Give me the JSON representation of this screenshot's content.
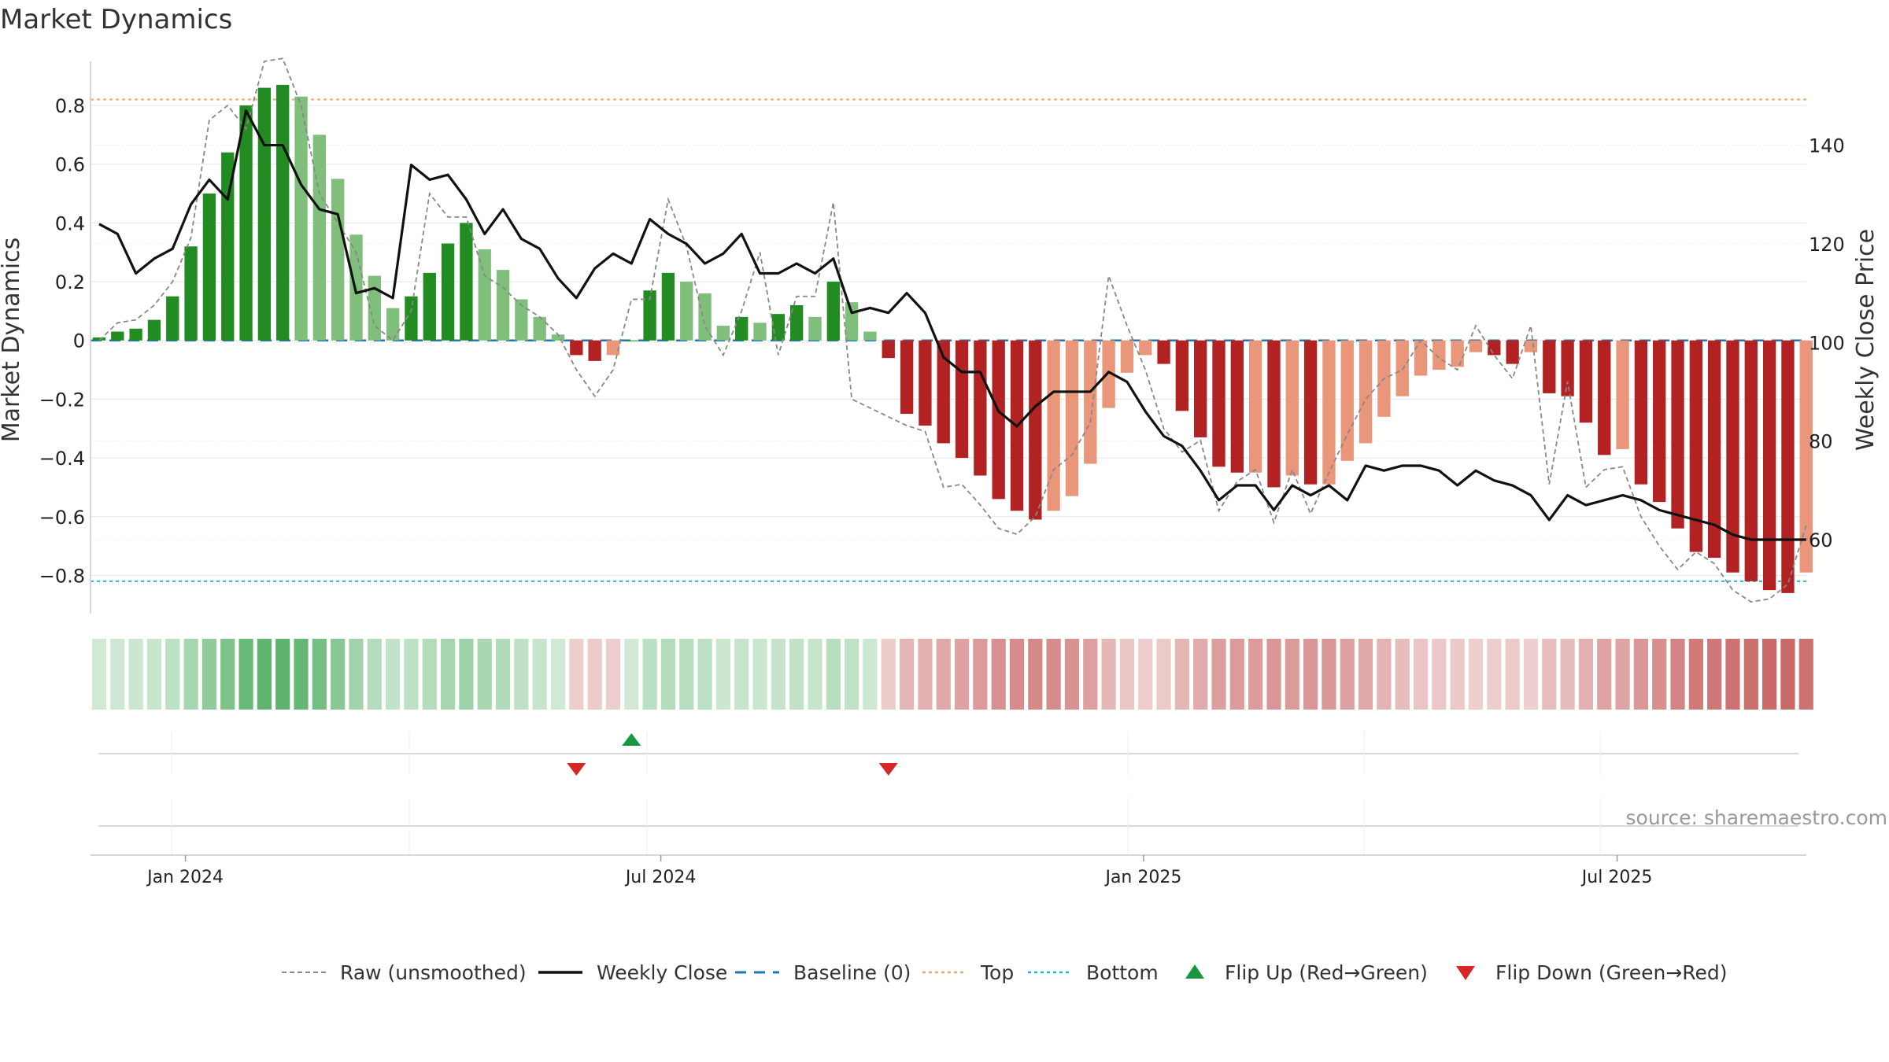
{
  "chart_data": {
    "type": "bar",
    "title": "Market Dynamics",
    "ylabel_left": "Market Dynamics",
    "ylabel_right": "Weekly Close Price",
    "ylim_left": [
      -0.93,
      0.95
    ],
    "yticks_left": [
      0.8,
      0.6,
      0.4,
      0.2,
      0,
      -0.2,
      -0.4,
      -0.6,
      -0.8
    ],
    "ytick_labels_left": [
      "0.8",
      "0.6",
      "0.4",
      "0.2",
      "0",
      "−0.2",
      "−0.4",
      "−0.6",
      "−0.8"
    ],
    "ylim_right": [
      45,
      157
    ],
    "yticks_right": [
      140,
      120,
      100,
      80,
      60
    ],
    "ytick_labels_right": [
      "140",
      "120",
      "100",
      "80",
      "60"
    ],
    "x_start": "2023-11-27",
    "x_ticks": [
      {
        "label": "Jan 2024",
        "week": 4.7
      },
      {
        "label": "Jul 2024",
        "week": 30.6
      },
      {
        "label": "Jan 2025",
        "week": 56.9
      },
      {
        "label": "Jul 2025",
        "week": 82.7
      }
    ],
    "reference_lines": {
      "top": 0.82,
      "bottom": -0.82,
      "baseline": 0
    },
    "bars": [
      0.01,
      0.03,
      0.04,
      0.07,
      0.15,
      0.32,
      0.5,
      0.64,
      0.8,
      0.86,
      0.87,
      0.83,
      0.7,
      0.55,
      0.36,
      0.22,
      0.11,
      0.15,
      0.23,
      0.33,
      0.4,
      0.31,
      0.24,
      0.14,
      0.08,
      0.02,
      -0.05,
      -0.07,
      -0.05,
      0.0,
      0.17,
      0.23,
      0.2,
      0.16,
      0.05,
      0.08,
      0.06,
      0.09,
      0.12,
      0.08,
      0.2,
      0.13,
      0.03,
      -0.06,
      -0.25,
      -0.29,
      -0.35,
      -0.4,
      -0.46,
      -0.54,
      -0.58,
      -0.61,
      -0.58,
      -0.53,
      -0.42,
      -0.23,
      -0.11,
      -0.05,
      -0.08,
      -0.24,
      -0.33,
      -0.43,
      -0.45,
      -0.45,
      -0.5,
      -0.46,
      -0.49,
      -0.49,
      -0.41,
      -0.35,
      -0.26,
      -0.19,
      -0.12,
      -0.1,
      -0.09,
      -0.04,
      -0.05,
      -0.08,
      -0.04,
      -0.18,
      -0.19,
      -0.28,
      -0.39,
      -0.37,
      -0.49,
      -0.55,
      -0.64,
      -0.72,
      -0.74,
      -0.79,
      -0.82,
      -0.85,
      -0.86,
      -0.79
    ],
    "bar_colors": {
      "pos_rising": "#228b22",
      "pos_falling": "#7fbf7b",
      "neg_falling": "#b22222",
      "neg_rising": "#e9967a"
    },
    "series": [
      {
        "name": "Raw (unsmoothed)",
        "style": "dashed",
        "color": "#888888",
        "values": [
          0.0,
          0.06,
          0.07,
          0.12,
          0.2,
          0.35,
          0.75,
          0.8,
          0.72,
          0.95,
          0.96,
          0.8,
          0.5,
          0.4,
          0.3,
          0.05,
          0.0,
          0.1,
          0.5,
          0.42,
          0.42,
          0.22,
          0.18,
          0.12,
          0.08,
          0.02,
          -0.1,
          -0.19,
          -0.1,
          0.14,
          0.14,
          0.48,
          0.32,
          0.05,
          -0.05,
          0.1,
          0.3,
          -0.05,
          0.15,
          0.15,
          0.47,
          -0.2,
          -0.23,
          -0.26,
          -0.29,
          -0.31,
          -0.5,
          -0.49,
          -0.56,
          -0.64,
          -0.66,
          -0.6,
          -0.44,
          -0.39,
          -0.28,
          0.22,
          0.05,
          -0.1,
          -0.3,
          -0.38,
          -0.34,
          -0.58,
          -0.48,
          -0.44,
          -0.62,
          -0.44,
          -0.59,
          -0.45,
          -0.32,
          -0.2,
          -0.13,
          -0.1,
          0.0,
          -0.06,
          -0.1,
          0.05,
          -0.05,
          -0.13,
          0.05,
          -0.49,
          -0.14,
          -0.5,
          -0.44,
          -0.43,
          -0.6,
          -0.7,
          -0.78,
          -0.72,
          -0.76,
          -0.85,
          -0.89,
          -0.88,
          -0.83,
          -0.63
        ]
      },
      {
        "name": "Weekly Close",
        "style": "solid",
        "color": "#111111",
        "values": [
          124,
          122,
          114,
          117,
          119,
          128,
          133,
          129,
          147,
          140,
          140,
          132,
          127,
          126,
          110,
          111,
          109,
          136,
          133,
          134,
          129,
          122,
          127,
          121,
          119,
          113,
          109,
          115,
          118,
          116,
          125,
          122,
          120,
          116,
          118,
          122,
          114,
          114,
          116,
          114,
          117,
          106,
          107,
          106,
          110,
          106,
          97,
          94,
          94,
          86,
          83,
          87,
          90,
          90,
          90,
          94,
          92,
          86,
          81,
          79,
          74,
          68,
          71,
          71,
          66,
          71,
          69,
          71,
          68,
          75,
          74,
          75,
          75,
          74,
          71,
          74,
          72,
          71,
          69,
          64,
          69,
          67,
          68,
          69,
          68,
          66,
          65,
          64,
          63,
          61,
          60,
          60,
          60,
          60
        ]
      },
      {
        "name": "Baseline (0)",
        "style": "dashed",
        "color": "#1f77b4"
      },
      {
        "name": "Top",
        "style": "dotted",
        "color": "#e8a96b"
      },
      {
        "name": "Bottom",
        "style": "dotted",
        "color": "#17becf"
      }
    ],
    "flips": [
      {
        "name": "Flip Up (Red→Green)",
        "marker": "triangle-up",
        "color": "#1a9641",
        "weeks": [
          29
        ]
      },
      {
        "name": "Flip Down (Green→Red)",
        "marker": "triangle-down",
        "color": "#d62728",
        "weeks": [
          26,
          43
        ]
      }
    ],
    "legend_placement": "bottom-center",
    "legend": [
      "Raw (unsmoothed)",
      "Weekly Close",
      "Baseline (0)",
      "Top",
      "Bottom",
      "Flip Up (Red→Green)",
      "Flip Down (Green→Red)"
    ],
    "grid": true
  },
  "source_text": "source: sharemaestro.com"
}
